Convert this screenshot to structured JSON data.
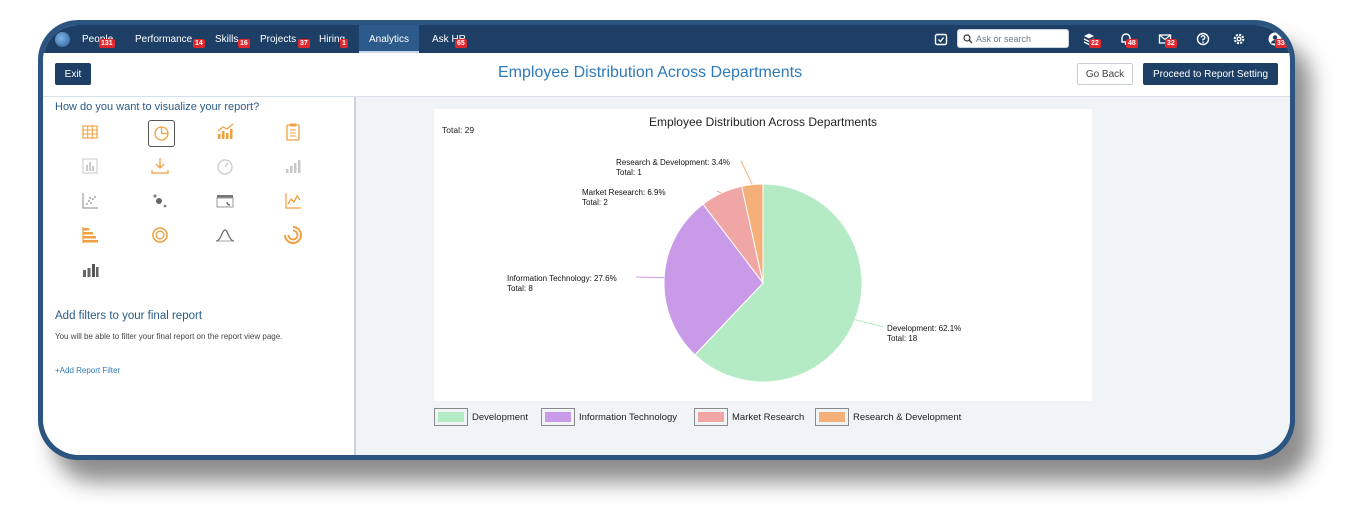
{
  "nav": {
    "items": [
      {
        "label": "People",
        "badge": "131"
      },
      {
        "label": "Performance",
        "badge": "14"
      },
      {
        "label": "Skills",
        "badge": "16"
      },
      {
        "label": "Projects",
        "badge": "37"
      },
      {
        "label": "Hiring",
        "badge": "1"
      },
      {
        "label": "Analytics",
        "badge": ""
      },
      {
        "label": "Ask HR",
        "badge": "65"
      }
    ],
    "search_placeholder": "Ask or search",
    "icon_badges": {
      "inbox": "22",
      "notifications": "48",
      "messages": "32",
      "profile": "33"
    }
  },
  "header": {
    "exit_label": "Exit",
    "title": "Employee Distribution Across Departments",
    "go_back_label": "Go Back",
    "proceed_label": "Proceed to Report Setting"
  },
  "left": {
    "viz_question": "How do you want to visualize your report?",
    "filters_title": "Add filters to your final report",
    "filters_desc": "You will be able to filter your final report on the report view page.",
    "add_filter_label": "+Add Report Filter"
  },
  "colors": {
    "nav_bg": "#1d3f66",
    "accent": "#2f7ab9",
    "badge": "#e0282e",
    "icon_orange": "#f0a040"
  },
  "chart_data": {
    "type": "pie",
    "title": "Employee Distribution Across Departments",
    "total_label": "Total: 29",
    "slices": [
      {
        "name": "Development",
        "value": 18,
        "percent_label": "Development: 62.1%",
        "total_label": "Total: 18",
        "color": "#b5ebc4"
      },
      {
        "name": "Information Technology",
        "value": 8,
        "percent_label": "Information Technology: 27.6%",
        "total_label": "Total: 8",
        "color": "#c99ae8"
      },
      {
        "name": "Market Research",
        "value": 2,
        "percent_label": "Market Research: 6.9%",
        "total_label": "Total: 2",
        "color": "#f0a6a4"
      },
      {
        "name": "Research & Development",
        "value": 1,
        "percent_label": "Research & Development: 3.4%",
        "total_label": "Total: 1",
        "color": "#f5b079"
      }
    ],
    "legend": [
      "Development",
      "Information Technology",
      "Market Research",
      "Research & Development"
    ]
  }
}
